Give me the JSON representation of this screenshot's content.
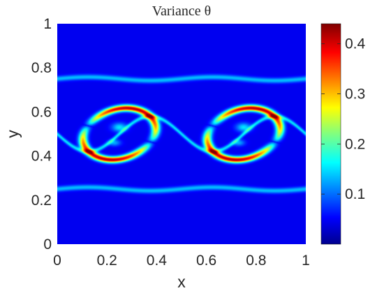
{
  "chart_data": {
    "type": "heatmap",
    "title": "Variance θ",
    "xlabel": "x",
    "ylabel": "y",
    "xlim": [
      0,
      1
    ],
    "ylim": [
      0,
      1
    ],
    "xticks": [
      "0",
      "0.2",
      "0.4",
      "0.6",
      "0.8",
      "1"
    ],
    "yticks": [
      "0",
      "0.2",
      "0.4",
      "0.6",
      "0.8",
      "1"
    ],
    "colorbar": {
      "colormap": "jet",
      "range": [
        0,
        0.44
      ],
      "ticks": [
        "0.1",
        "0.2",
        "0.3",
        "0.4"
      ],
      "tick_values": [
        0.1,
        0.2,
        0.3,
        0.4
      ]
    },
    "field_description": {
      "background_value": 0.0,
      "interface_band_y": [
        0.25,
        0.75
      ],
      "interface_band_value": 0.1,
      "vortex_centers_x": [
        0.25,
        0.75
      ],
      "vortex_center_y": 0.5,
      "max_value": 0.44
    },
    "grid": false
  }
}
